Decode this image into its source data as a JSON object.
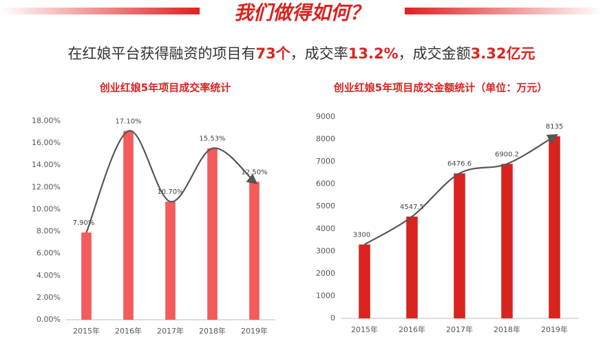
{
  "title": "我们做得如何？",
  "headline": [
    {
      "text": "在红娘平台获得融资的项目有",
      "highlight": false
    },
    {
      "text": "73个",
      "highlight": true
    },
    {
      "text": "，成交率",
      "highlight": false
    },
    {
      "text": "13.2%",
      "highlight": true
    },
    {
      "text": "，成交金额",
      "highlight": false
    },
    {
      "text": "3.32亿元",
      "highlight": true
    }
  ],
  "chart_data": [
    {
      "type": "bar",
      "title": "创业红娘5年项目成交率统计",
      "categories": [
        "2015年",
        "2016年",
        "2017年",
        "2018年",
        "2019年"
      ],
      "values": [
        7.9,
        17.1,
        10.7,
        15.53,
        12.5
      ],
      "value_labels": [
        "7.90%",
        "17.10%",
        "10.70%",
        "15.53%",
        "12.50%"
      ],
      "color": "#f45b5b",
      "trend_line": true,
      "grid": false,
      "ylim": [
        0,
        18
      ],
      "yticks": [
        {
          "value": 0,
          "label": "0.00%"
        },
        {
          "value": 2,
          "label": "2.00%"
        },
        {
          "value": 4,
          "label": "4.00%"
        },
        {
          "value": 6,
          "label": "6.00%"
        },
        {
          "value": 8,
          "label": "8.00%"
        },
        {
          "value": 10,
          "label": "10.00%"
        },
        {
          "value": 12,
          "label": "12.00%"
        },
        {
          "value": 14,
          "label": "14.00%"
        },
        {
          "value": 16,
          "label": "16.00%"
        },
        {
          "value": 18,
          "label": "18.00%"
        }
      ]
    },
    {
      "type": "bar",
      "title": "创业红娘5年项目成交金额统计（单位：万元）",
      "categories": [
        "2015年",
        "2016年",
        "2017年",
        "2018年",
        "2019年"
      ],
      "values": [
        3300,
        4547.5,
        6476.6,
        6900.2,
        8135
      ],
      "color": "#d9231f",
      "trend_line": true,
      "grid": false,
      "ylim": [
        0,
        9000
      ],
      "yticks": [
        0,
        1000,
        2000,
        3000,
        4000,
        5000,
        6000,
        7000,
        8000,
        9000
      ]
    }
  ]
}
